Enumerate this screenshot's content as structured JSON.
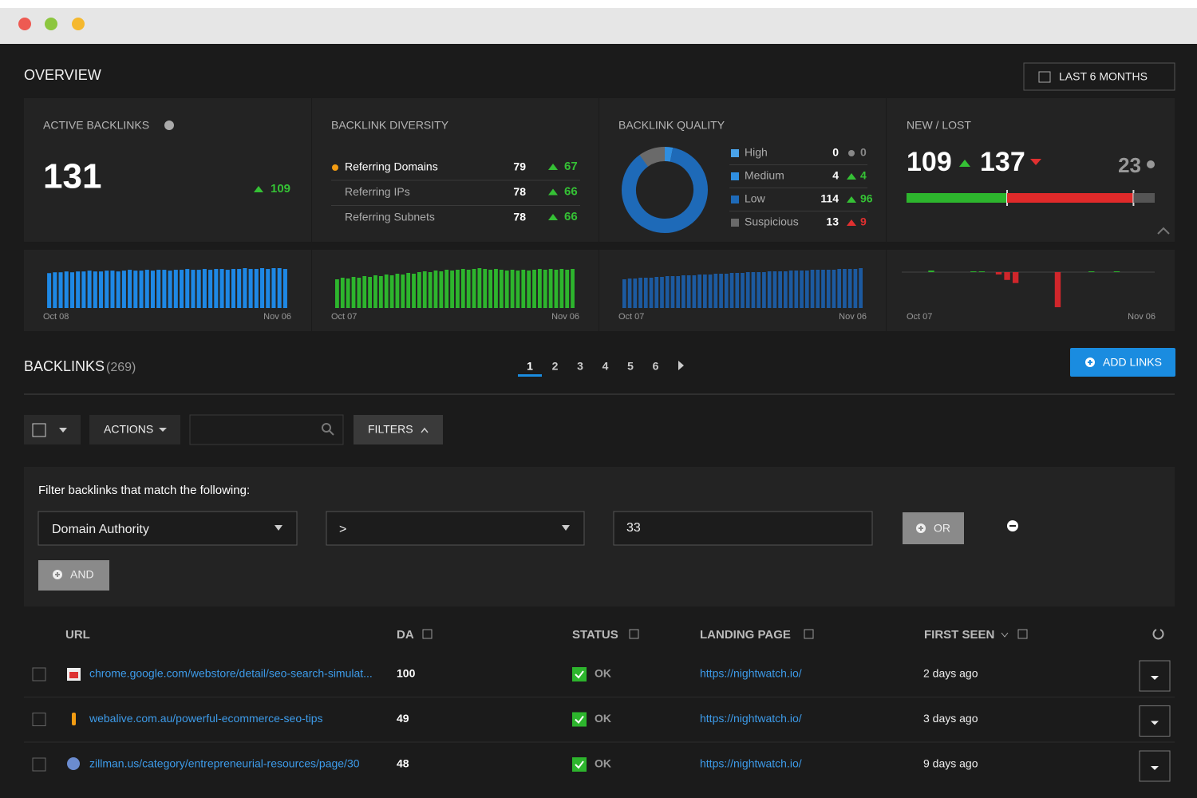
{
  "overview": {
    "title": "OVERVIEW",
    "date_button": "LAST 6 MONTHS",
    "active_backlinks": {
      "title": "ACTIVE BACKLINKS",
      "value": 131,
      "change": 109,
      "spark": {
        "color": "#1e88e5",
        "start": "Oct 08",
        "end": "Nov 06",
        "values": [
          42,
          43,
          43,
          44,
          43,
          44,
          44,
          45,
          44,
          44,
          45,
          45,
          44,
          45,
          46,
          45,
          45,
          46,
          45,
          46,
          46,
          45,
          46,
          46,
          47,
          46,
          46,
          47,
          46,
          47,
          47,
          46,
          47,
          47,
          48,
          47,
          47,
          48,
          47,
          48,
          48,
          47
        ]
      }
    },
    "diversity": {
      "title": "BACKLINK DIVERSITY",
      "rows": [
        {
          "label": "Referring Domains",
          "value": 79,
          "change": 67
        },
        {
          "label": "Referring IPs",
          "value": 78,
          "change": 66
        },
        {
          "label": "Referring Subnets",
          "value": 78,
          "change": 66
        }
      ],
      "spark": {
        "color": "#2db52d",
        "start": "Oct 07",
        "end": "Nov 06",
        "values": [
          36,
          38,
          37,
          39,
          38,
          40,
          39,
          41,
          40,
          42,
          41,
          43,
          42,
          44,
          43,
          45,
          46,
          45,
          47,
          46,
          48,
          47,
          48,
          49,
          48,
          49,
          50,
          49,
          48,
          49,
          48,
          47,
          48,
          47,
          48,
          47,
          48,
          49,
          48,
          49,
          48,
          49,
          48,
          49
        ]
      }
    },
    "quality": {
      "title": "BACKLINK QUALITY",
      "rows": [
        {
          "label": "High",
          "value": 0,
          "change": 0,
          "color": "#4aa3ea",
          "change_color": "#888888"
        },
        {
          "label": "Medium",
          "value": 4,
          "change": 4,
          "color": "#2f8ee0",
          "change_color": "#35c135"
        },
        {
          "label": "Low",
          "value": 114,
          "change": 96,
          "color": "#1e6ab8",
          "change_color": "#35c135"
        },
        {
          "label": "Suspicious",
          "value": 13,
          "change": 9,
          "color": "#6a6a6a",
          "change_color": "#e03030"
        }
      ],
      "spark": {
        "color": "#1c5aa0",
        "start": "Oct 07",
        "end": "Nov 06",
        "values": [
          36,
          37,
          37,
          38,
          38,
          38,
          39,
          39,
          40,
          40,
          40,
          41,
          41,
          41,
          42,
          42,
          42,
          43,
          43,
          43,
          44,
          44,
          44,
          45,
          45,
          45,
          45,
          46,
          46,
          46,
          46,
          47,
          47,
          47,
          47,
          48,
          48,
          48,
          48,
          48,
          49,
          49,
          49,
          49,
          50
        ]
      }
    },
    "new_lost": {
      "title": "NEW / LOST",
      "new": 109,
      "lost": 137,
      "other": 23,
      "spark": {
        "color": "#2db52d",
        "negative_color": "#d0262b",
        "start": "Oct 07",
        "end": "Nov 06",
        "values": [
          0,
          0,
          0,
          2,
          0,
          0,
          0,
          0,
          1,
          1,
          0,
          -3,
          -10,
          -14,
          0,
          0,
          0,
          0,
          -45,
          0,
          0,
          0,
          1,
          0,
          0,
          1,
          0,
          0,
          0,
          0
        ]
      }
    }
  },
  "backlinks": {
    "title": "BACKLINKS",
    "count": "(269)",
    "pages": [
      1,
      2,
      3,
      4,
      5,
      6
    ],
    "add_button": "ADD LINKS",
    "actions": "ACTIONS",
    "filters": "FILTERS",
    "filter": {
      "heading": "Filter backlinks that match the following:",
      "field": "Domain Authority",
      "operator": ">",
      "value": "33",
      "or": "OR",
      "and": "AND"
    },
    "table": {
      "columns": [
        "URL",
        "DA",
        "STATUS",
        "LANDING PAGE",
        "FIRST SEEN"
      ],
      "rows": [
        [
          "chrome.google.com/webstore/detail/seo-search-simulat...",
          100,
          "OK",
          "https://nightwatch.io/",
          "2 days ago"
        ],
        [
          "webalive.com.au/powerful-ecommerce-seo-tips",
          49,
          "OK",
          "https://nightwatch.io/",
          "3 days ago"
        ],
        [
          "zillman.us/category/entrepreneurial-resources/page/30",
          48,
          "OK",
          "https://nightwatch.io/",
          "9 days ago"
        ]
      ]
    }
  }
}
